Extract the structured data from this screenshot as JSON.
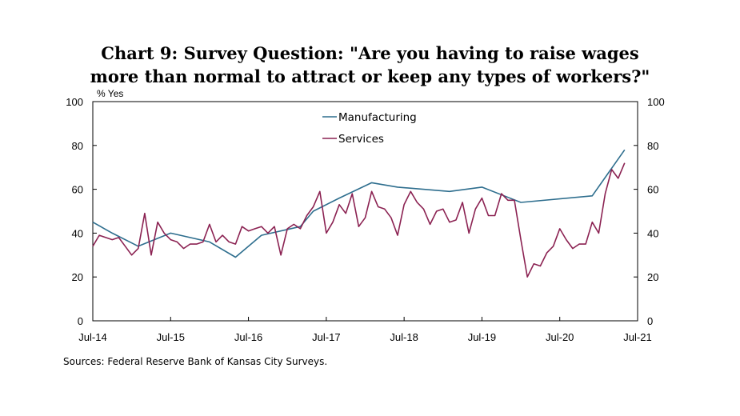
{
  "chart_data": {
    "type": "line",
    "title_lines": [
      "Chart 9: Survey Question: \"Are you having to raise wages",
      "more than normal to attract or keep any types of workers?\""
    ],
    "ylabel": "% Yes",
    "ylim": [
      0,
      100
    ],
    "y_ticks": [
      "0",
      "20",
      "40",
      "60",
      "80",
      "100"
    ],
    "y_tick_values": [
      0,
      20,
      40,
      60,
      80,
      100
    ],
    "x_range": [
      0,
      84
    ],
    "x_ticks": [
      {
        "label": "Jul-14",
        "x": 0
      },
      {
        "label": "Jul-15",
        "x": 12
      },
      {
        "label": "Jul-16",
        "x": 24
      },
      {
        "label": "Jul-17",
        "x": 36
      },
      {
        "label": "Jul-18",
        "x": 48
      },
      {
        "label": "Jul-19",
        "x": 60
      },
      {
        "label": "Jul-20",
        "x": 72
      },
      {
        "label": "Jul-21",
        "x": 84
      }
    ],
    "series": [
      {
        "name": "Manufacturing",
        "color": "#2e6e8e",
        "points": [
          [
            0,
            45
          ],
          [
            3,
            40
          ],
          [
            7,
            34
          ],
          [
            12,
            40
          ],
          [
            18,
            36
          ],
          [
            22,
            29
          ],
          [
            26,
            39
          ],
          [
            32,
            43
          ],
          [
            34,
            50
          ],
          [
            38,
            56
          ],
          [
            43,
            63
          ],
          [
            47,
            61
          ],
          [
            55,
            59
          ],
          [
            60,
            61
          ],
          [
            66,
            54
          ],
          [
            77,
            57
          ],
          [
            82,
            78
          ]
        ]
      },
      {
        "name": "Services",
        "color": "#8b2252",
        "points": [
          [
            0,
            34
          ],
          [
            1,
            39
          ],
          [
            2,
            38
          ],
          [
            3,
            37
          ],
          [
            4,
            38
          ],
          [
            5,
            34
          ],
          [
            6,
            30
          ],
          [
            7,
            33
          ],
          [
            8,
            49
          ],
          [
            9,
            30
          ],
          [
            10,
            45
          ],
          [
            11,
            40
          ],
          [
            12,
            37
          ],
          [
            13,
            36
          ],
          [
            14,
            33
          ],
          [
            15,
            35
          ],
          [
            16,
            35
          ],
          [
            17,
            36
          ],
          [
            18,
            44
          ],
          [
            19,
            36
          ],
          [
            20,
            39
          ],
          [
            21,
            36
          ],
          [
            22,
            35
          ],
          [
            23,
            43
          ],
          [
            24,
            41
          ],
          [
            25,
            42
          ],
          [
            26,
            43
          ],
          [
            27,
            40
          ],
          [
            28,
            43
          ],
          [
            29,
            30
          ],
          [
            30,
            42
          ],
          [
            31,
            44
          ],
          [
            32,
            42
          ],
          [
            33,
            48
          ],
          [
            34,
            52
          ],
          [
            35,
            59
          ],
          [
            36,
            40
          ],
          [
            37,
            45
          ],
          [
            38,
            53
          ],
          [
            39,
            49
          ],
          [
            40,
            58
          ],
          [
            41,
            43
          ],
          [
            42,
            47
          ],
          [
            43,
            59
          ],
          [
            44,
            52
          ],
          [
            45,
            51
          ],
          [
            46,
            47
          ],
          [
            47,
            39
          ],
          [
            48,
            53
          ],
          [
            49,
            59
          ],
          [
            50,
            54
          ],
          [
            51,
            51
          ],
          [
            52,
            44
          ],
          [
            53,
            50
          ],
          [
            54,
            51
          ],
          [
            55,
            45
          ],
          [
            56,
            46
          ],
          [
            57,
            54
          ],
          [
            58,
            40
          ],
          [
            59,
            51
          ],
          [
            60,
            56
          ],
          [
            61,
            48
          ],
          [
            62,
            48
          ],
          [
            63,
            58
          ],
          [
            64,
            55
          ],
          [
            65,
            55
          ],
          [
            66,
            37
          ],
          [
            67,
            20
          ],
          [
            68,
            26
          ],
          [
            69,
            25
          ],
          [
            70,
            31
          ],
          [
            71,
            34
          ],
          [
            72,
            42
          ],
          [
            73,
            37
          ],
          [
            74,
            33
          ],
          [
            75,
            35
          ],
          [
            76,
            35
          ],
          [
            77,
            45
          ],
          [
            78,
            40
          ],
          [
            79,
            58
          ],
          [
            80,
            69
          ],
          [
            81,
            65
          ],
          [
            82,
            72
          ]
        ]
      }
    ],
    "legend_position": "top-center",
    "grid": false,
    "source": "Sources: Federal Reserve Bank of Kansas City Surveys."
  }
}
